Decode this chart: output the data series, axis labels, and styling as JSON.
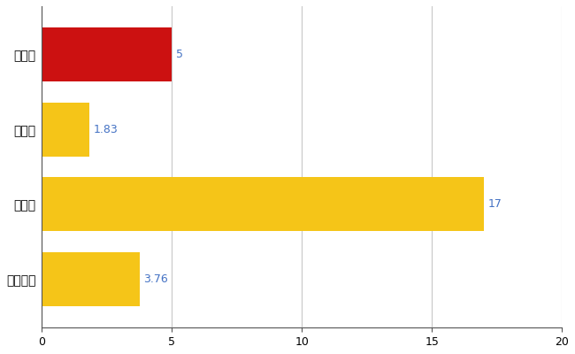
{
  "categories": [
    "千曲市",
    "県平均",
    "県最大",
    "全国平均"
  ],
  "values": [
    5,
    1.83,
    17,
    3.76
  ],
  "bar_colors": [
    "#cc1111",
    "#f5c518",
    "#f5c518",
    "#f5c518"
  ],
  "value_labels": [
    "5",
    "1.83",
    "17",
    "3.76"
  ],
  "label_color": "#4472c4",
  "xlim": [
    0,
    20
  ],
  "xticks": [
    0,
    5,
    10,
    15,
    20
  ],
  "grid_color": "#c8c8c8",
  "background_color": "#ffffff",
  "bar_height": 0.72,
  "figsize": [
    6.5,
    4.0
  ],
  "dpi": 100
}
